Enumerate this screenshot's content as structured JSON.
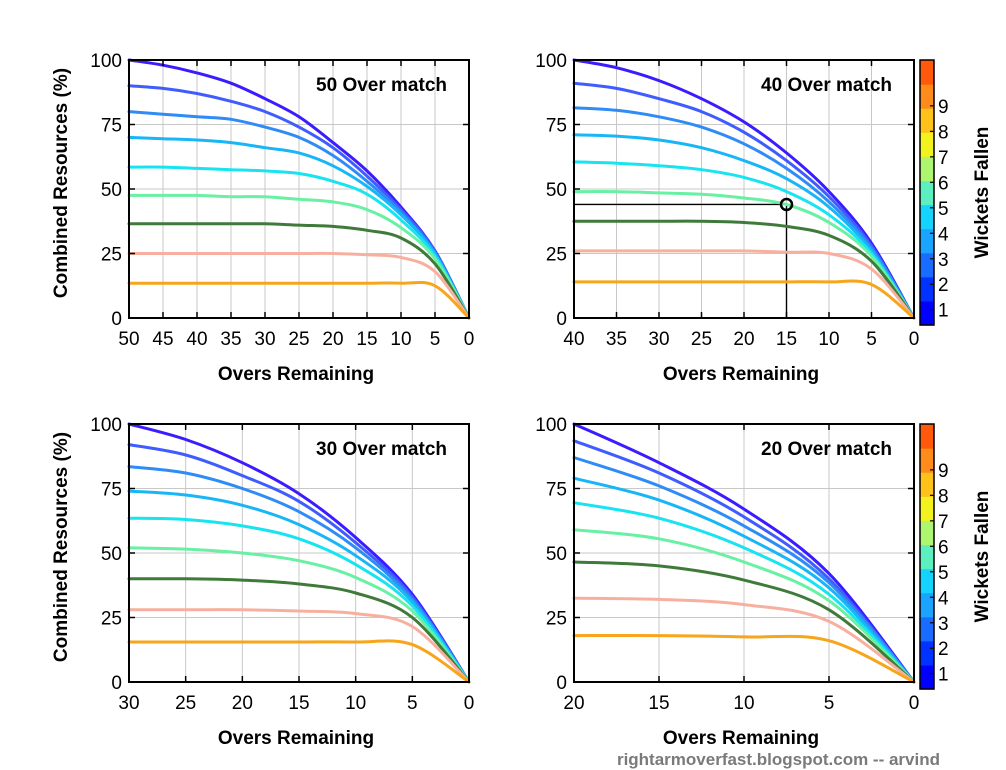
{
  "credit": "rightarmoverfast.blogspot.com -- arvind",
  "wicket_colors": [
    "#3a1cff",
    "#3f5cff",
    "#2f8cf7",
    "#19b6f7",
    "#17e4f0",
    "#68f0a3",
    "#3f7a3a",
    "#f7b0a0",
    "#f7a51a",
    "#f25a0b"
  ],
  "colorbar": {
    "label": "Wickets Fallen",
    "ticks": [
      "1",
      "2",
      "3",
      "4",
      "5",
      "6",
      "7",
      "8",
      "9"
    ],
    "colors": [
      "#0000ff",
      "#0033ff",
      "#1a6bff",
      "#1aa3ff",
      "#14d4ff",
      "#5cf0c0",
      "#aef570",
      "#f2f21e",
      "#ffc21a",
      "#ff8c1a",
      "#ff5a0b"
    ]
  },
  "chart_data": [
    {
      "type": "line",
      "title": "50 Over match",
      "xlabel": "Overs Remaining",
      "ylabel": "Combined Resources (%)",
      "xlim": [
        50,
        0
      ],
      "ylim": [
        0,
        100
      ],
      "xticks": [
        50,
        45,
        40,
        35,
        30,
        25,
        20,
        15,
        10,
        5,
        0
      ],
      "yticks": [
        0,
        25,
        50,
        75,
        100
      ],
      "grid": true,
      "series": [
        {
          "wickets": 0,
          "x": [
            50,
            45,
            40,
            35,
            30,
            25,
            20,
            15,
            10,
            5,
            0
          ],
          "y": [
            100,
            98,
            95,
            91,
            85,
            78,
            68,
            57,
            43,
            26,
            0
          ]
        },
        {
          "wickets": 1,
          "x": [
            50,
            45,
            40,
            35,
            30,
            25,
            20,
            15,
            10,
            5,
            0
          ],
          "y": [
            90,
            89,
            87,
            84,
            80,
            74,
            66,
            55,
            42,
            26,
            0
          ]
        },
        {
          "wickets": 2,
          "x": [
            50,
            45,
            40,
            35,
            30,
            25,
            20,
            15,
            10,
            5,
            0
          ],
          "y": [
            80,
            79,
            78,
            77,
            74,
            70,
            63,
            53,
            41,
            25,
            0
          ]
        },
        {
          "wickets": 3,
          "x": [
            50,
            45,
            40,
            35,
            30,
            25,
            20,
            15,
            10,
            5,
            0
          ],
          "y": [
            70,
            69.5,
            69,
            68,
            66,
            64,
            59,
            51,
            40,
            25,
            0
          ]
        },
        {
          "wickets": 4,
          "x": [
            50,
            45,
            40,
            35,
            30,
            25,
            20,
            15,
            10,
            5,
            0
          ],
          "y": [
            58.5,
            58.5,
            58,
            57.5,
            57,
            56,
            53,
            48,
            38,
            24,
            0
          ]
        },
        {
          "wickets": 5,
          "x": [
            50,
            45,
            40,
            35,
            30,
            25,
            20,
            15,
            10,
            5,
            0
          ],
          "y": [
            47.5,
            47.5,
            47.5,
            47,
            47,
            46,
            45,
            42,
            35,
            23,
            0
          ]
        },
        {
          "wickets": 6,
          "x": [
            50,
            45,
            40,
            35,
            30,
            25,
            20,
            15,
            10,
            5,
            0
          ],
          "y": [
            36.5,
            36.5,
            36.5,
            36.5,
            36.5,
            36,
            35.5,
            34,
            31,
            21,
            0
          ]
        },
        {
          "wickets": 7,
          "x": [
            50,
            45,
            40,
            35,
            30,
            25,
            20,
            15,
            10,
            5,
            0
          ],
          "y": [
            25,
            25,
            25,
            25,
            25,
            25,
            25,
            24.5,
            23.5,
            18,
            0
          ]
        },
        {
          "wickets": 8,
          "x": [
            50,
            45,
            40,
            35,
            30,
            25,
            20,
            15,
            10,
            5,
            0
          ],
          "y": [
            13.5,
            13.5,
            13.5,
            13.5,
            13.5,
            13.5,
            13.5,
            13.5,
            13.5,
            12.5,
            0
          ]
        }
      ]
    },
    {
      "type": "line",
      "title": "40 Over match",
      "xlabel": "Overs Remaining",
      "ylabel": "",
      "xlim": [
        40,
        0
      ],
      "ylim": [
        0,
        100
      ],
      "xticks": [
        40,
        35,
        30,
        25,
        20,
        15,
        10,
        5,
        0
      ],
      "yticks": [
        0,
        25,
        50,
        75,
        100
      ],
      "grid": true,
      "marker": {
        "x": 15,
        "y": 44
      },
      "series": [
        {
          "wickets": 0,
          "x": [
            40,
            35,
            30,
            25,
            20,
            15,
            10,
            5,
            0
          ],
          "y": [
            100,
            97,
            92,
            85,
            76,
            64,
            49,
            29,
            0
          ]
        },
        {
          "wickets": 1,
          "x": [
            40,
            35,
            30,
            25,
            20,
            15,
            10,
            5,
            0
          ],
          "y": [
            91,
            89,
            85,
            80,
            72,
            61,
            47,
            28,
            0
          ]
        },
        {
          "wickets": 2,
          "x": [
            40,
            35,
            30,
            25,
            20,
            15,
            10,
            5,
            0
          ],
          "y": [
            81.5,
            80.5,
            78,
            74,
            67.5,
            58,
            45,
            27,
            0
          ]
        },
        {
          "wickets": 3,
          "x": [
            40,
            35,
            30,
            25,
            20,
            15,
            10,
            5,
            0
          ],
          "y": [
            71,
            70.5,
            69,
            66,
            61,
            54,
            43,
            26,
            0
          ]
        },
        {
          "wickets": 4,
          "x": [
            40,
            35,
            30,
            25,
            20,
            15,
            10,
            5,
            0
          ],
          "y": [
            60.5,
            60,
            59,
            57.5,
            54.5,
            49,
            40,
            25,
            0
          ]
        },
        {
          "wickets": 5,
          "x": [
            40,
            35,
            30,
            25,
            20,
            15,
            10,
            5,
            0
          ],
          "y": [
            49,
            49,
            48.5,
            48,
            46.5,
            44,
            37,
            24,
            0
          ]
        },
        {
          "wickets": 6,
          "x": [
            40,
            35,
            30,
            25,
            20,
            15,
            10,
            5,
            0
          ],
          "y": [
            37.5,
            37.5,
            37.5,
            37.5,
            37,
            35.5,
            32,
            22,
            0
          ]
        },
        {
          "wickets": 7,
          "x": [
            40,
            35,
            30,
            25,
            20,
            15,
            10,
            5,
            0
          ],
          "y": [
            26,
            26,
            26,
            26,
            26,
            25.5,
            25,
            19,
            0
          ]
        },
        {
          "wickets": 8,
          "x": [
            40,
            35,
            30,
            25,
            20,
            15,
            10,
            5,
            0
          ],
          "y": [
            14,
            14,
            14,
            14,
            14,
            14,
            14,
            13,
            0
          ]
        }
      ]
    },
    {
      "type": "line",
      "title": "30 Over match",
      "xlabel": "Overs Remaining",
      "ylabel": "Combined Resources (%)",
      "xlim": [
        30,
        0
      ],
      "ylim": [
        0,
        100
      ],
      "xticks": [
        30,
        25,
        20,
        15,
        10,
        5,
        0
      ],
      "yticks": [
        0,
        25,
        50,
        75,
        100
      ],
      "grid": true,
      "series": [
        {
          "wickets": 0,
          "x": [
            30,
            25,
            20,
            15,
            10,
            5,
            0
          ],
          "y": [
            100,
            94,
            85,
            73,
            56,
            34,
            0
          ]
        },
        {
          "wickets": 1,
          "x": [
            30,
            25,
            20,
            15,
            10,
            5,
            0
          ],
          "y": [
            92,
            88,
            80,
            70,
            54,
            33,
            0
          ]
        },
        {
          "wickets": 2,
          "x": [
            30,
            25,
            20,
            15,
            10,
            5,
            0
          ],
          "y": [
            83.5,
            81,
            75,
            66,
            52,
            32,
            0
          ]
        },
        {
          "wickets": 3,
          "x": [
            30,
            25,
            20,
            15,
            10,
            5,
            0
          ],
          "y": [
            74,
            72.5,
            68.5,
            61,
            49,
            31,
            0
          ]
        },
        {
          "wickets": 4,
          "x": [
            30,
            25,
            20,
            15,
            10,
            5,
            0
          ],
          "y": [
            63.5,
            63,
            60.5,
            55.5,
            45.5,
            29.5,
            0
          ]
        },
        {
          "wickets": 5,
          "x": [
            30,
            25,
            20,
            15,
            10,
            5,
            0
          ],
          "y": [
            52,
            51.5,
            50,
            47,
            40.5,
            27.5,
            0
          ]
        },
        {
          "wickets": 6,
          "x": [
            30,
            25,
            20,
            15,
            10,
            5,
            0
          ],
          "y": [
            40,
            40,
            39.5,
            38,
            34.5,
            25,
            0
          ]
        },
        {
          "wickets": 7,
          "x": [
            30,
            25,
            20,
            15,
            10,
            5,
            0
          ],
          "y": [
            28,
            28,
            28,
            27.5,
            26.5,
            21.5,
            0
          ]
        },
        {
          "wickets": 8,
          "x": [
            30,
            25,
            20,
            15,
            10,
            5,
            0
          ],
          "y": [
            15.5,
            15.5,
            15.5,
            15.5,
            15.5,
            14.5,
            0
          ]
        }
      ]
    },
    {
      "type": "line",
      "title": "20 Over match",
      "xlabel": "Overs Remaining",
      "ylabel": "",
      "xlim": [
        20,
        0
      ],
      "ylim": [
        0,
        100
      ],
      "xticks": [
        20,
        15,
        10,
        5,
        0
      ],
      "yticks": [
        0,
        25,
        50,
        75,
        100
      ],
      "grid": true,
      "series": [
        {
          "wickets": 0,
          "x": [
            20,
            15,
            10,
            5,
            0
          ],
          "y": [
            100,
            85,
            67,
            42,
            0
          ]
        },
        {
          "wickets": 1,
          "x": [
            20,
            15,
            10,
            5,
            0
          ],
          "y": [
            93.5,
            81,
            64,
            40,
            0
          ]
        },
        {
          "wickets": 2,
          "x": [
            20,
            15,
            10,
            5,
            0
          ],
          "y": [
            87,
            76,
            60.5,
            38.5,
            0
          ]
        },
        {
          "wickets": 3,
          "x": [
            20,
            15,
            10,
            5,
            0
          ],
          "y": [
            79,
            70.5,
            56.5,
            36.5,
            0
          ]
        },
        {
          "wickets": 4,
          "x": [
            20,
            15,
            10,
            5,
            0
          ],
          "y": [
            69.5,
            63.5,
            52,
            34,
            0
          ]
        },
        {
          "wickets": 5,
          "x": [
            20,
            15,
            10,
            5,
            0
          ],
          "y": [
            59,
            55.5,
            46.5,
            31.5,
            0
          ]
        },
        {
          "wickets": 6,
          "x": [
            20,
            15,
            10,
            5,
            0
          ],
          "y": [
            46.5,
            45,
            39.5,
            28,
            0
          ]
        },
        {
          "wickets": 7,
          "x": [
            20,
            15,
            10,
            5,
            0
          ],
          "y": [
            32.5,
            32,
            30,
            23.5,
            0
          ]
        },
        {
          "wickets": 8,
          "x": [
            20,
            15,
            10,
            5,
            0
          ],
          "y": [
            18,
            18,
            17.5,
            16,
            0
          ]
        }
      ]
    }
  ]
}
